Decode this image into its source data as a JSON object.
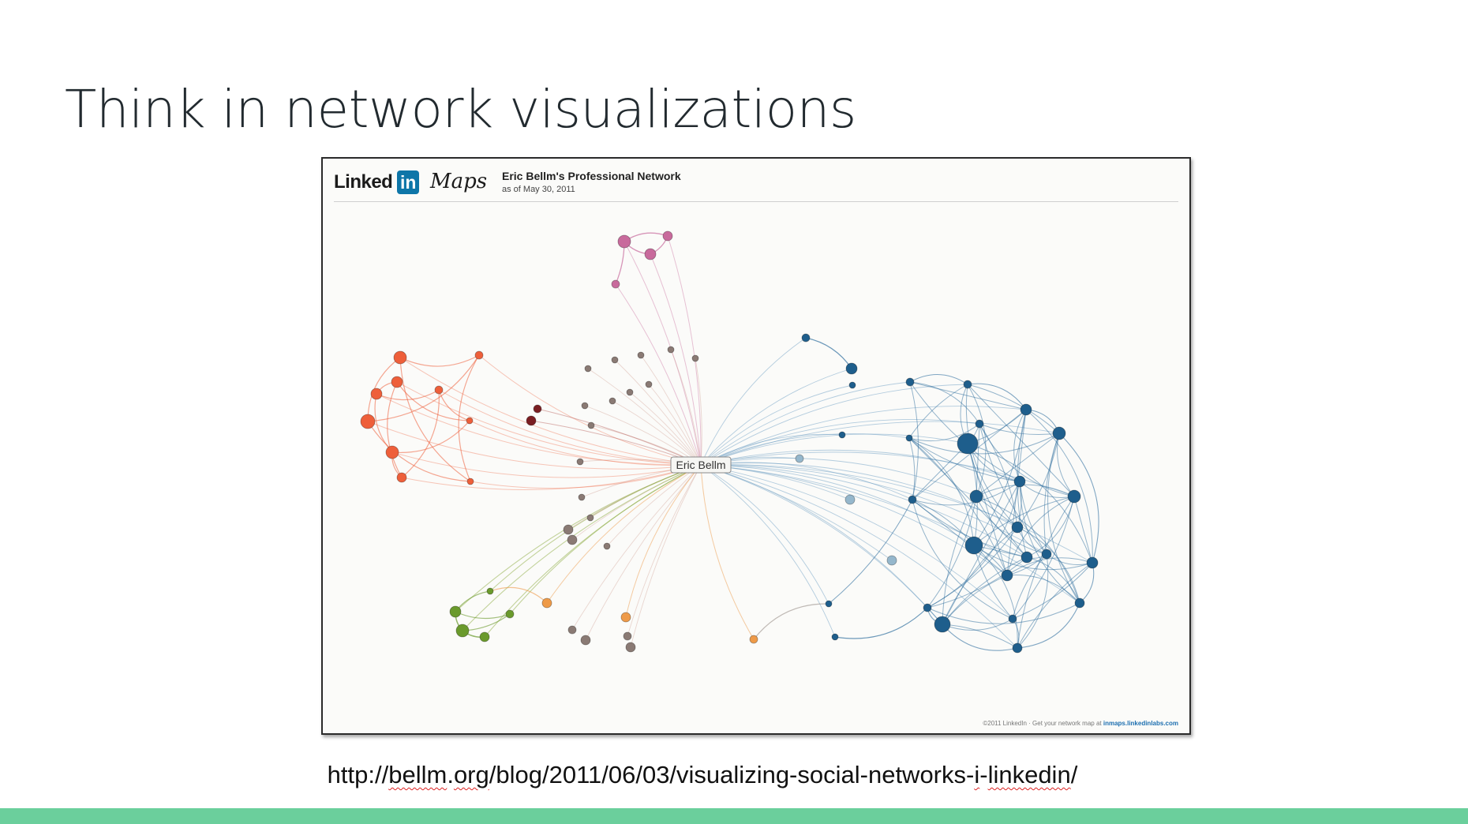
{
  "slide": {
    "title": "Think in network visualizations",
    "url_caption": {
      "prefix": "http://",
      "word1": "bellm",
      "mid1": ".",
      "word2": "org",
      "mid2": "/blog/2011/06/03/visualizing-social-networks-",
      "word3": "i",
      "mid3": "-",
      "word4": "linkedin",
      "suffix": "/"
    },
    "accent_bar_color": "#6bcf9c"
  },
  "map": {
    "logo_linked": "Linked",
    "logo_in": "in",
    "logo_maps": "Maps",
    "title": "Eric Bellm's Professional Network",
    "date": "as of May 30, 2011",
    "center_label": "Eric Bellm",
    "footer_text": "©2011 LinkedIn · Get your network map at",
    "footer_link": "inmaps.linkedinlabs.com"
  },
  "colors": {
    "orange_cluster": "#ee5f3a",
    "pink_cluster": "#c86a9c",
    "brown_cluster": "#8a7a74",
    "darkred_cluster": "#7a1e22",
    "blue_cluster": "#1e5e8c",
    "lightblue_node": "#95b7cc",
    "green_cluster": "#6a9a2c",
    "amber_cluster": "#ee9a48"
  }
}
